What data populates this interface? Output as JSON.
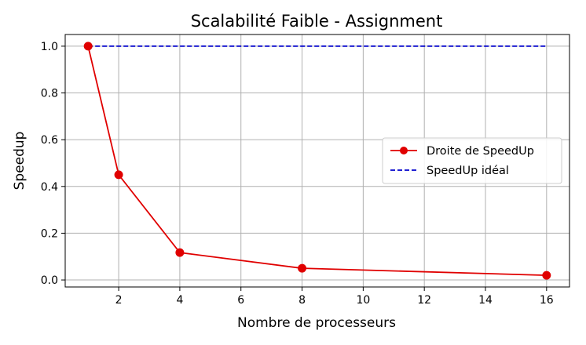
{
  "chart_data": {
    "type": "line",
    "title": "Scalabilité Faible - Assignment",
    "xlabel": "Nombre de processeurs",
    "ylabel": "Speedup",
    "xlim": [
      0.25,
      16.75
    ],
    "ylim": [
      -0.03,
      1.05
    ],
    "xticks": [
      2,
      4,
      6,
      8,
      10,
      12,
      14,
      16
    ],
    "yticks": [
      0.0,
      0.2,
      0.4,
      0.6,
      0.8,
      1.0
    ],
    "ytick_labels": [
      "0.0",
      "0.2",
      "0.4",
      "0.6",
      "0.8",
      "1.0"
    ],
    "grid": true,
    "legend_position": "center-right",
    "series": [
      {
        "name": "Droite de SpeedUp",
        "color": "#e00000",
        "style": "solid",
        "marker": "circle",
        "x": [
          1,
          2,
          4,
          8,
          16
        ],
        "y": [
          1.0,
          0.45,
          0.117,
          0.05,
          0.02
        ]
      },
      {
        "name": "SpeedUp idéal",
        "color": "#0000cc",
        "style": "dashed",
        "marker": "none",
        "x": [
          1,
          16
        ],
        "y": [
          1.0,
          1.0
        ]
      }
    ]
  }
}
